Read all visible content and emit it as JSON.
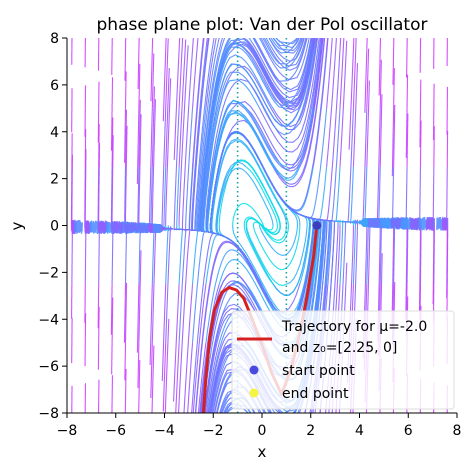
{
  "chart_data": {
    "type": "line",
    "title": "phase plane plot: Van der Pol oscillator",
    "xlabel": "x",
    "ylabel": "y",
    "xlim": [
      -8,
      8
    ],
    "ylim": [
      -8,
      8
    ],
    "xticks": [
      -8,
      -6,
      -4,
      -2,
      0,
      2,
      4,
      6,
      8
    ],
    "yticks": [
      -8,
      -6,
      -4,
      -2,
      0,
      2,
      4,
      6,
      8
    ],
    "xtick_labels": [
      "−8",
      "−6",
      "−4",
      "−2",
      "0",
      "2",
      "4",
      "6",
      "8"
    ],
    "ytick_labels": [
      "−8",
      "−6",
      "−4",
      "−2",
      "0",
      "2",
      "4",
      "6",
      "8"
    ],
    "mu": -2.0,
    "nullclines_x": [
      -1,
      1
    ],
    "grid": false,
    "legend_position": "bottom-right",
    "legend": {
      "trajectory_line1": "Trajectory for μ=-2.0",
      "trajectory_line2": "and z₀=[2.25, 0]",
      "start_label": "start point",
      "end_label": "end point"
    },
    "series": [
      {
        "name": "Trajectory for μ=-2.0 and z₀=[2.25, 0]",
        "color": "#d62020",
        "x": [
          2.25,
          2.12,
          1.85,
          1.55,
          1.2,
          0.8,
          0.4,
          0.0,
          -0.4,
          -0.75,
          -1.05,
          -1.35,
          -1.65,
          -1.95,
          -2.15,
          -2.3,
          -2.4
        ],
        "y": [
          0.0,
          -1.3,
          -3.0,
          -4.6,
          -6.1,
          -7.2,
          -6.3,
          -5.1,
          -4.0,
          -3.1,
          -2.75,
          -2.65,
          -2.85,
          -3.6,
          -4.8,
          -6.5,
          -8.0
        ]
      }
    ],
    "points": {
      "start": {
        "x": 2.25,
        "y": 0.0,
        "color": "#1f1fd6"
      },
      "end": {
        "x": 2.25,
        "y": 0.0,
        "color": "#f5f52a"
      }
    },
    "stream_colormap": [
      "#00e5e5",
      "#3fa0ff",
      "#7a6aff",
      "#d03cff"
    ]
  }
}
